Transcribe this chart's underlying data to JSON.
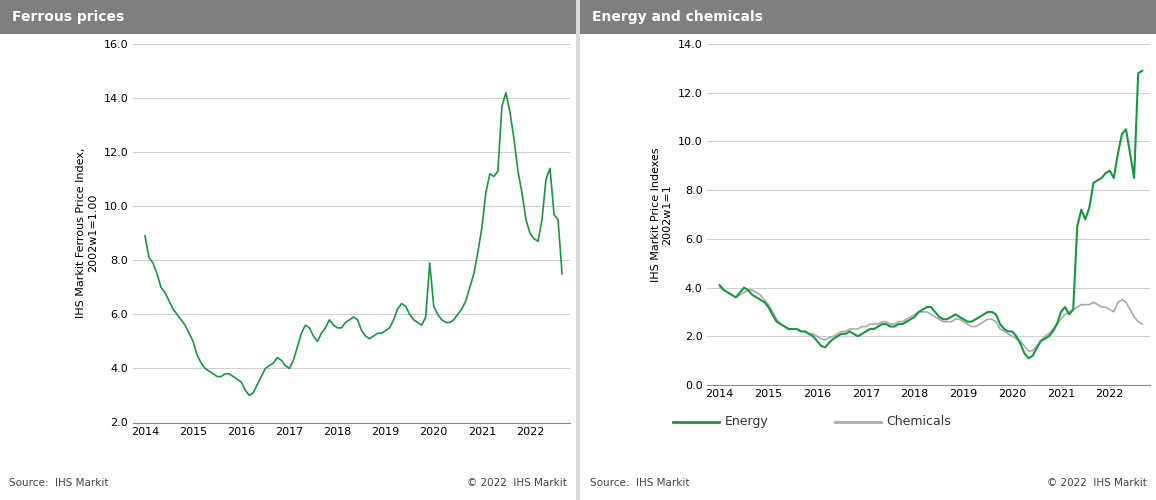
{
  "title_left": "Ferrous prices",
  "title_right": "Energy and chemicals",
  "ylabel_left": "IHS Markit Ferrous Price Index,\n2002w1=1.00",
  "ylabel_right": "IHS Markit Price Indexes\n2002w1=1",
  "ylim_left": [
    2.0,
    16.0
  ],
  "ylim_right": [
    0.0,
    14.0
  ],
  "yticks_left": [
    2.0,
    4.0,
    6.0,
    8.0,
    10.0,
    12.0,
    14.0,
    16.0
  ],
  "yticks_right": [
    0.0,
    2.0,
    4.0,
    6.0,
    8.0,
    10.0,
    12.0,
    14.0
  ],
  "xticks": [
    2014,
    2015,
    2016,
    2017,
    2018,
    2019,
    2020,
    2021,
    2022
  ],
  "line_color_green": "#1a9641",
  "line_color_gray": "#aaaaaa",
  "header_bg_color": "#7f7f7f",
  "header_text_color": "#ffffff",
  "plot_bg_color": "#d9d9d9",
  "chart_bg_color": "#ffffff",
  "source_text_left": "Source:  IHS Markit",
  "source_text_right": "Source:  IHS Markit",
  "copyright_text": "© 2022  IHS Markit",
  "legend_energy": "Energy",
  "legend_chemicals": "Chemicals",
  "ferrous_x": [
    2014.0,
    2014.083,
    2014.167,
    2014.25,
    2014.333,
    2014.417,
    2014.5,
    2014.583,
    2014.667,
    2014.75,
    2014.833,
    2014.917,
    2015.0,
    2015.083,
    2015.167,
    2015.25,
    2015.333,
    2015.417,
    2015.5,
    2015.583,
    2015.667,
    2015.75,
    2015.833,
    2015.917,
    2016.0,
    2016.083,
    2016.167,
    2016.25,
    2016.333,
    2016.417,
    2016.5,
    2016.583,
    2016.667,
    2016.75,
    2016.833,
    2016.917,
    2017.0,
    2017.083,
    2017.167,
    2017.25,
    2017.333,
    2017.417,
    2017.5,
    2017.583,
    2017.667,
    2017.75,
    2017.833,
    2017.917,
    2018.0,
    2018.083,
    2018.167,
    2018.25,
    2018.333,
    2018.417,
    2018.5,
    2018.583,
    2018.667,
    2018.75,
    2018.833,
    2018.917,
    2019.0,
    2019.083,
    2019.167,
    2019.25,
    2019.333,
    2019.417,
    2019.5,
    2019.583,
    2019.667,
    2019.75,
    2019.833,
    2019.917,
    2020.0,
    2020.083,
    2020.167,
    2020.25,
    2020.333,
    2020.417,
    2020.5,
    2020.583,
    2020.667,
    2020.75,
    2020.833,
    2020.917,
    2021.0,
    2021.083,
    2021.167,
    2021.25,
    2021.333,
    2021.417,
    2021.5,
    2021.583,
    2021.667,
    2021.75,
    2021.833,
    2021.917,
    2022.0,
    2022.083,
    2022.167,
    2022.25,
    2022.333,
    2022.417,
    2022.5,
    2022.583,
    2022.667
  ],
  "ferrous_y": [
    8.9,
    8.1,
    7.9,
    7.5,
    7.0,
    6.8,
    6.5,
    6.2,
    6.0,
    5.8,
    5.6,
    5.3,
    5.0,
    4.5,
    4.2,
    4.0,
    3.9,
    3.8,
    3.7,
    3.7,
    3.8,
    3.8,
    3.7,
    3.6,
    3.5,
    3.2,
    3.0,
    3.1,
    3.4,
    3.7,
    4.0,
    4.1,
    4.2,
    4.4,
    4.3,
    4.1,
    4.0,
    4.3,
    4.8,
    5.3,
    5.6,
    5.5,
    5.2,
    5.0,
    5.3,
    5.5,
    5.8,
    5.6,
    5.5,
    5.5,
    5.7,
    5.8,
    5.9,
    5.8,
    5.4,
    5.2,
    5.1,
    5.2,
    5.3,
    5.3,
    5.4,
    5.5,
    5.8,
    6.2,
    6.4,
    6.3,
    6.0,
    5.8,
    5.7,
    5.6,
    5.9,
    7.9,
    6.3,
    6.0,
    5.8,
    5.7,
    5.7,
    5.8,
    6.0,
    6.2,
    6.5,
    7.0,
    7.5,
    8.3,
    9.2,
    10.5,
    11.2,
    11.1,
    11.3,
    13.7,
    14.2,
    13.5,
    12.5,
    11.3,
    10.5,
    9.5,
    9.0,
    8.8,
    8.7,
    9.5,
    11.0,
    11.4,
    9.7,
    9.5,
    7.5
  ],
  "energy_x": [
    2014.0,
    2014.083,
    2014.167,
    2014.25,
    2014.333,
    2014.417,
    2014.5,
    2014.583,
    2014.667,
    2014.75,
    2014.833,
    2014.917,
    2015.0,
    2015.083,
    2015.167,
    2015.25,
    2015.333,
    2015.417,
    2015.5,
    2015.583,
    2015.667,
    2015.75,
    2015.833,
    2015.917,
    2016.0,
    2016.083,
    2016.167,
    2016.25,
    2016.333,
    2016.417,
    2016.5,
    2016.583,
    2016.667,
    2016.75,
    2016.833,
    2016.917,
    2017.0,
    2017.083,
    2017.167,
    2017.25,
    2017.333,
    2017.417,
    2017.5,
    2017.583,
    2017.667,
    2017.75,
    2017.833,
    2017.917,
    2018.0,
    2018.083,
    2018.167,
    2018.25,
    2018.333,
    2018.417,
    2018.5,
    2018.583,
    2018.667,
    2018.75,
    2018.833,
    2018.917,
    2019.0,
    2019.083,
    2019.167,
    2019.25,
    2019.333,
    2019.417,
    2019.5,
    2019.583,
    2019.667,
    2019.75,
    2019.833,
    2019.917,
    2020.0,
    2020.083,
    2020.167,
    2020.25,
    2020.333,
    2020.417,
    2020.5,
    2020.583,
    2020.667,
    2020.75,
    2020.833,
    2020.917,
    2021.0,
    2021.083,
    2021.167,
    2021.25,
    2021.333,
    2021.417,
    2021.5,
    2021.583,
    2021.667,
    2021.75,
    2021.833,
    2021.917,
    2022.0,
    2022.083,
    2022.167,
    2022.25,
    2022.333,
    2022.417,
    2022.5,
    2022.583,
    2022.667
  ],
  "energy_y": [
    4.1,
    3.9,
    3.8,
    3.7,
    3.6,
    3.8,
    4.0,
    3.9,
    3.7,
    3.6,
    3.5,
    3.4,
    3.2,
    2.9,
    2.6,
    2.5,
    2.4,
    2.3,
    2.3,
    2.3,
    2.2,
    2.2,
    2.1,
    2.0,
    1.8,
    1.6,
    1.55,
    1.75,
    1.9,
    2.0,
    2.1,
    2.1,
    2.2,
    2.1,
    2.0,
    2.1,
    2.2,
    2.3,
    2.3,
    2.4,
    2.5,
    2.5,
    2.4,
    2.4,
    2.5,
    2.5,
    2.6,
    2.7,
    2.8,
    3.0,
    3.1,
    3.2,
    3.2,
    3.0,
    2.8,
    2.7,
    2.7,
    2.8,
    2.9,
    2.8,
    2.7,
    2.6,
    2.6,
    2.7,
    2.8,
    2.9,
    3.0,
    3.0,
    2.9,
    2.5,
    2.3,
    2.2,
    2.2,
    2.0,
    1.7,
    1.3,
    1.1,
    1.2,
    1.5,
    1.8,
    1.9,
    2.0,
    2.2,
    2.5,
    3.0,
    3.2,
    2.9,
    3.1,
    6.5,
    7.2,
    6.8,
    7.3,
    8.3,
    8.4,
    8.5,
    8.7,
    8.8,
    8.5,
    9.5,
    10.3,
    10.5,
    9.5,
    8.5,
    12.8,
    12.9
  ],
  "chemicals_x": [
    2014.0,
    2014.083,
    2014.167,
    2014.25,
    2014.333,
    2014.417,
    2014.5,
    2014.583,
    2014.667,
    2014.75,
    2014.833,
    2014.917,
    2015.0,
    2015.083,
    2015.167,
    2015.25,
    2015.333,
    2015.417,
    2015.5,
    2015.583,
    2015.667,
    2015.75,
    2015.833,
    2015.917,
    2016.0,
    2016.083,
    2016.167,
    2016.25,
    2016.333,
    2016.417,
    2016.5,
    2016.583,
    2016.667,
    2016.75,
    2016.833,
    2016.917,
    2017.0,
    2017.083,
    2017.167,
    2017.25,
    2017.333,
    2017.417,
    2017.5,
    2017.583,
    2017.667,
    2017.75,
    2017.833,
    2017.917,
    2018.0,
    2018.083,
    2018.167,
    2018.25,
    2018.333,
    2018.417,
    2018.5,
    2018.583,
    2018.667,
    2018.75,
    2018.833,
    2018.917,
    2019.0,
    2019.083,
    2019.167,
    2019.25,
    2019.333,
    2019.417,
    2019.5,
    2019.583,
    2019.667,
    2019.75,
    2019.833,
    2019.917,
    2020.0,
    2020.083,
    2020.167,
    2020.25,
    2020.333,
    2020.417,
    2020.5,
    2020.583,
    2020.667,
    2020.75,
    2020.833,
    2020.917,
    2021.0,
    2021.083,
    2021.167,
    2021.25,
    2021.333,
    2021.417,
    2021.5,
    2021.583,
    2021.667,
    2021.75,
    2021.833,
    2021.917,
    2022.0,
    2022.083,
    2022.167,
    2022.25,
    2022.333,
    2022.417,
    2022.5,
    2022.583,
    2022.667
  ],
  "chemicals_y": [
    4.0,
    3.9,
    3.8,
    3.7,
    3.6,
    3.7,
    3.8,
    3.9,
    3.9,
    3.8,
    3.7,
    3.5,
    3.3,
    3.0,
    2.7,
    2.5,
    2.4,
    2.3,
    2.3,
    2.3,
    2.2,
    2.2,
    2.1,
    2.1,
    2.0,
    1.9,
    1.85,
    1.95,
    2.0,
    2.1,
    2.2,
    2.2,
    2.3,
    2.3,
    2.3,
    2.4,
    2.4,
    2.5,
    2.5,
    2.5,
    2.6,
    2.6,
    2.5,
    2.5,
    2.6,
    2.6,
    2.7,
    2.8,
    2.9,
    3.0,
    3.0,
    3.0,
    2.9,
    2.8,
    2.7,
    2.6,
    2.6,
    2.6,
    2.7,
    2.7,
    2.6,
    2.5,
    2.4,
    2.4,
    2.5,
    2.6,
    2.7,
    2.7,
    2.6,
    2.3,
    2.2,
    2.1,
    2.0,
    1.9,
    1.8,
    1.6,
    1.4,
    1.4,
    1.6,
    1.8,
    2.0,
    2.1,
    2.3,
    2.5,
    2.7,
    2.9,
    3.0,
    3.1,
    3.2,
    3.3,
    3.3,
    3.3,
    3.4,
    3.3,
    3.2,
    3.2,
    3.1,
    3.0,
    3.4,
    3.5,
    3.4,
    3.1,
    2.8,
    2.6,
    2.5
  ]
}
